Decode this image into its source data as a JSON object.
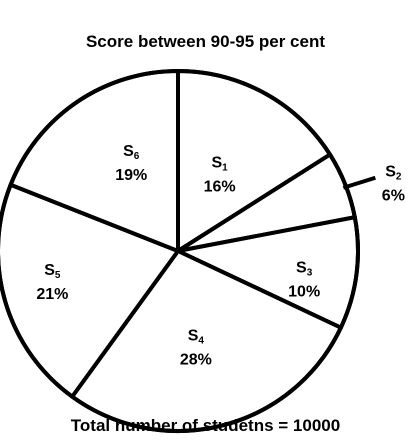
{
  "chart_data": {
    "type": "pie",
    "title": "Score between 90-95 per cent",
    "footer": "Total number of studetns = 10000",
    "slices": [
      {
        "label": "S",
        "sub": "1",
        "value": 16,
        "value_text": "16%"
      },
      {
        "label": "S",
        "sub": "2",
        "value": 6,
        "value_text": "6%"
      },
      {
        "label": "S",
        "sub": "3",
        "value": 10,
        "value_text": "10%"
      },
      {
        "label": "S",
        "sub": "4",
        "value": 28,
        "value_text": "28%"
      },
      {
        "label": "S",
        "sub": "5",
        "value": 21,
        "value_text": "21%"
      },
      {
        "label": "S",
        "sub": "6",
        "value": 19,
        "value_text": "19%"
      }
    ]
  }
}
